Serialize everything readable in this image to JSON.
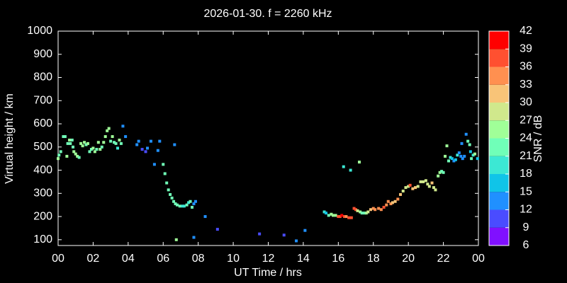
{
  "chart_data": {
    "type": "scatter",
    "title": "2026-01-30. f = 2260 kHz",
    "x_label": "UT Time / hrs",
    "y_label": "Virtual height / km",
    "colorbar_label": "SNR / dB",
    "xlim": [
      0,
      24
    ],
    "ylim": [
      75,
      1000
    ],
    "xticks": [
      {
        "value": 0,
        "label": "00"
      },
      {
        "value": 2,
        "label": "02"
      },
      {
        "value": 4,
        "label": "04"
      },
      {
        "value": 6,
        "label": "06"
      },
      {
        "value": 8,
        "label": "08"
      },
      10,
      12,
      14,
      16,
      18,
      20,
      22,
      {
        "value": 24,
        "label": "00"
      }
    ],
    "yticks": [
      100,
      200,
      300,
      400,
      500,
      600,
      700,
      800,
      900,
      1000
    ],
    "colorbar": {
      "ticks": [
        6,
        9,
        12,
        15,
        18,
        21,
        24,
        27,
        30,
        33,
        36,
        39,
        42
      ],
      "colors": [
        "#8010ff",
        "#4a4cff",
        "#2090ff",
        "#10c4e8",
        "#3ce8d4",
        "#70ffb8",
        "#a0ff98",
        "#d0e88c",
        "#f8c478",
        "#ff9050",
        "#ff5030",
        "#ff0000"
      ]
    },
    "x": [
      0.0,
      0.05,
      0.15,
      0.3,
      0.4,
      0.5,
      0.55,
      0.65,
      0.7,
      0.8,
      0.85,
      0.9,
      1.0,
      1.1,
      1.2,
      1.3,
      1.4,
      1.5,
      1.6,
      1.7,
      1.8,
      1.9,
      2.0,
      2.1,
      2.2,
      2.3,
      2.4,
      2.5,
      2.6,
      2.7,
      2.8,
      2.9,
      3.0,
      3.1,
      3.2,
      3.3,
      3.4,
      3.5,
      3.6,
      3.7,
      3.85,
      4.5,
      4.6,
      4.8,
      5.0,
      5.1,
      5.3,
      5.5,
      5.7,
      5.8,
      6.0,
      6.1,
      6.2,
      6.3,
      6.4,
      6.5,
      6.6,
      6.7,
      6.8,
      6.95,
      7.1,
      7.2,
      7.35,
      7.45,
      7.55,
      7.65,
      7.75,
      7.85,
      6.65,
      6.75,
      7.75,
      8.4,
      9.1,
      11.5,
      12.9,
      13.6,
      14.1,
      15.2,
      15.3,
      15.45,
      15.6,
      15.7,
      15.85,
      16.0,
      16.1,
      16.2,
      16.35,
      16.45,
      16.6,
      16.75,
      16.3,
      16.7,
      17.2,
      16.9,
      17.0,
      17.1,
      17.25,
      17.35,
      17.5,
      17.6,
      17.7,
      17.85,
      18.0,
      18.1,
      18.3,
      18.45,
      18.6,
      18.75,
      18.85,
      19.0,
      19.1,
      19.25,
      19.4,
      19.55,
      19.7,
      19.85,
      20.0,
      20.1,
      20.25,
      20.4,
      20.55,
      20.7,
      20.85,
      21.0,
      21.1,
      21.2,
      21.35,
      21.45,
      21.55,
      21.7,
      21.8,
      21.9,
      22.0,
      22.1,
      22.2,
      22.3,
      22.4,
      22.5,
      22.6,
      22.7,
      22.8,
      22.9,
      23.0,
      23.1,
      23.2,
      23.3,
      23.4,
      23.5,
      23.6,
      23.7,
      23.8,
      23.95,
      23.05,
      23.55
    ],
    "y": [
      450,
      465,
      480,
      545,
      545,
      460,
      515,
      530,
      515,
      530,
      500,
      480,
      470,
      460,
      455,
      515,
      505,
      520,
      510,
      515,
      480,
      490,
      495,
      480,
      490,
      520,
      490,
      500,
      520,
      545,
      570,
      580,
      525,
      545,
      520,
      515,
      495,
      530,
      515,
      590,
      545,
      510,
      525,
      490,
      480,
      495,
      525,
      425,
      485,
      525,
      425,
      385,
      345,
      315,
      295,
      280,
      265,
      255,
      250,
      245,
      245,
      245,
      250,
      260,
      265,
      240,
      255,
      265,
      510,
      100,
      110,
      200,
      145,
      125,
      120,
      95,
      140,
      220,
      215,
      205,
      210,
      205,
      205,
      200,
      200,
      205,
      200,
      200,
      195,
      195,
      415,
      400,
      435,
      235,
      230,
      225,
      220,
      215,
      215,
      215,
      220,
      230,
      235,
      230,
      235,
      230,
      240,
      250,
      265,
      255,
      260,
      265,
      275,
      295,
      310,
      325,
      330,
      335,
      320,
      325,
      330,
      350,
      350,
      355,
      340,
      330,
      345,
      325,
      315,
      375,
      390,
      395,
      390,
      460,
      505,
      440,
      455,
      450,
      440,
      445,
      465,
      475,
      460,
      450,
      460,
      555,
      525,
      510,
      450,
      465,
      470,
      450,
      515,
      480
    ],
    "snr": [
      24,
      21,
      21,
      21,
      21,
      24,
      21,
      24,
      21,
      21,
      21,
      24,
      24,
      24,
      21,
      24,
      24,
      24,
      21,
      24,
      21,
      21,
      24,
      24,
      21,
      24,
      24,
      21,
      24,
      24,
      24,
      24,
      21,
      24,
      21,
      21,
      18,
      24,
      21,
      12,
      12,
      12,
      12,
      9,
      9,
      12,
      12,
      12,
      12,
      12,
      21,
      21,
      21,
      21,
      21,
      21,
      21,
      21,
      21,
      21,
      18,
      18,
      21,
      18,
      21,
      21,
      12,
      12,
      12,
      24,
      12,
      12,
      9,
      9,
      9,
      12,
      12,
      18,
      15,
      21,
      24,
      24,
      24,
      36,
      36,
      39,
      36,
      33,
      36,
      36,
      18,
      18,
      24,
      36,
      36,
      27,
      24,
      21,
      21,
      24,
      27,
      30,
      33,
      33,
      33,
      33,
      36,
      33,
      33,
      33,
      30,
      30,
      33,
      30,
      27,
      27,
      27,
      36,
      30,
      30,
      27,
      27,
      27,
      27,
      27,
      27,
      30,
      27,
      27,
      24,
      24,
      21,
      21,
      24,
      24,
      21,
      18,
      15,
      12,
      15,
      18,
      12,
      12,
      12,
      12,
      12,
      21,
      21,
      21,
      18,
      24,
      15,
      12,
      15
    ]
  }
}
